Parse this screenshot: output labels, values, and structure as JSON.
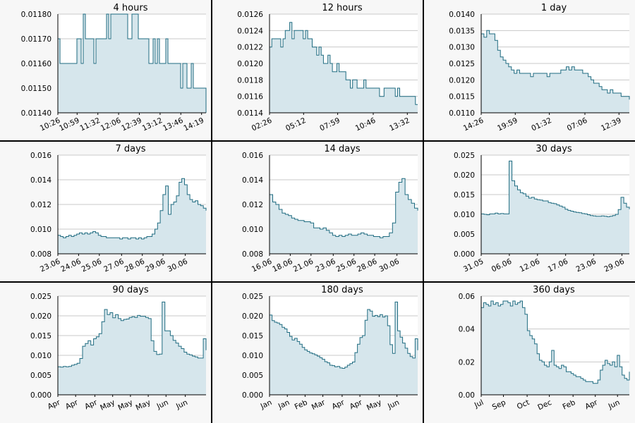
{
  "colors": {
    "line": "#1f6b80",
    "fill": "#d6e6ec",
    "grid": "#c8c8c8",
    "background": "#f7f7f7"
  },
  "chart_data": [
    {
      "type": "area",
      "title": "4 hours",
      "grid": true,
      "ylim": [
        0.0114,
        0.0118
      ],
      "yticks": [
        "0.01140",
        "0.01150",
        "0.01160",
        "0.01170",
        "0.01180"
      ],
      "xticks": [
        "10:26",
        "10:59",
        "11:32",
        "12:06",
        "12:39",
        "13:12",
        "13:46",
        "14:19"
      ],
      "xtick_pos": [
        0,
        0.13,
        0.27,
        0.41,
        0.55,
        0.69,
        0.83,
        0.97
      ],
      "series": [
        {
          "values": [
            0.0117,
            0.0116,
            0.0116,
            0.0116,
            0.0116,
            0.0116,
            0.0116,
            0.0116,
            0.0116,
            0.0117,
            0.0117,
            0.0116,
            0.0118,
            0.0117,
            0.0117,
            0.0117,
            0.0117,
            0.0116,
            0.0117,
            0.0117,
            0.0117,
            0.0117,
            0.0117,
            0.0118,
            0.0117,
            0.0118,
            0.0118,
            0.0118,
            0.0118,
            0.0118,
            0.0118,
            0.0118,
            0.0118,
            0.0117,
            0.0117,
            0.0118,
            0.0118,
            0.0118,
            0.0117,
            0.0117,
            0.0117,
            0.0117,
            0.0117,
            0.0116,
            0.0116,
            0.0117,
            0.0116,
            0.0117,
            0.0116,
            0.0116,
            0.0116,
            0.0117,
            0.0116,
            0.0116,
            0.0116,
            0.0116,
            0.0116,
            0.0116,
            0.0115,
            0.0116,
            0.0116,
            0.0115,
            0.0115,
            0.0116,
            0.0115,
            0.0115,
            0.0115,
            0.0115,
            0.0115,
            0.0115,
            0.0114
          ]
        }
      ]
    },
    {
      "type": "area",
      "title": "12 hours",
      "grid": true,
      "ylim": [
        0.0114,
        0.0126
      ],
      "yticks": [
        "0.0114",
        "0.0116",
        "0.0118",
        "0.0120",
        "0.0122",
        "0.0124",
        "0.0126"
      ],
      "xticks": [
        "02:26",
        "05:12",
        "07:59",
        "10:46",
        "13:32"
      ],
      "xtick_pos": [
        0,
        0.23,
        0.46,
        0.7,
        0.93
      ],
      "series": [
        {
          "values": [
            0.0122,
            0.0123,
            0.0123,
            0.0123,
            0.0123,
            0.0122,
            0.0123,
            0.0124,
            0.0124,
            0.0125,
            0.0123,
            0.0124,
            0.0124,
            0.0124,
            0.0124,
            0.0123,
            0.0124,
            0.0123,
            0.0123,
            0.0122,
            0.0122,
            0.0121,
            0.0122,
            0.0121,
            0.012,
            0.012,
            0.0121,
            0.012,
            0.0119,
            0.0119,
            0.012,
            0.0119,
            0.0119,
            0.0119,
            0.0118,
            0.0118,
            0.0117,
            0.0118,
            0.0118,
            0.0117,
            0.0117,
            0.0117,
            0.0118,
            0.0117,
            0.0117,
            0.0117,
            0.0117,
            0.0117,
            0.0117,
            0.0116,
            0.0116,
            0.0117,
            0.0117,
            0.0117,
            0.0117,
            0.0117,
            0.0116,
            0.0117,
            0.0116,
            0.0116,
            0.0116,
            0.0116,
            0.0116,
            0.0116,
            0.0116,
            0.0115,
            0.0115
          ]
        }
      ]
    },
    {
      "type": "area",
      "title": "1 day",
      "grid": true,
      "ylim": [
        0.011,
        0.014
      ],
      "yticks": [
        "0.0110",
        "0.0115",
        "0.0120",
        "0.0125",
        "0.0130",
        "0.0135",
        "0.0140"
      ],
      "xticks": [
        "14:26",
        "19:59",
        "01:32",
        "07:06",
        "12:39"
      ],
      "xtick_pos": [
        0,
        0.23,
        0.46,
        0.7,
        0.93
      ],
      "series": [
        {
          "values": [
            0.0134,
            0.0133,
            0.0135,
            0.0134,
            0.0134,
            0.0132,
            0.0129,
            0.0127,
            0.0126,
            0.0125,
            0.0124,
            0.0123,
            0.0122,
            0.0123,
            0.0122,
            0.0122,
            0.0122,
            0.0122,
            0.0121,
            0.0122,
            0.0122,
            0.0122,
            0.0122,
            0.0122,
            0.0121,
            0.0122,
            0.0122,
            0.0122,
            0.0122,
            0.0123,
            0.0123,
            0.0124,
            0.0123,
            0.0124,
            0.0123,
            0.0123,
            0.0123,
            0.0122,
            0.0122,
            0.0121,
            0.012,
            0.0119,
            0.0119,
            0.0118,
            0.0117,
            0.0117,
            0.0116,
            0.0117,
            0.0116,
            0.0116,
            0.0116,
            0.0115,
            0.0115,
            0.0115,
            0.0114
          ]
        }
      ]
    },
    {
      "type": "area",
      "title": "7 days",
      "grid": true,
      "ylim": [
        0.008,
        0.016
      ],
      "yticks": [
        "0.008",
        "0.010",
        "0.012",
        "0.014",
        "0.016"
      ],
      "xticks": [
        "23.06",
        "24.06",
        "25.06",
        "27.06",
        "28.06",
        "29.06",
        "30.06"
      ],
      "xtick_pos": [
        0,
        0.14,
        0.28,
        0.43,
        0.57,
        0.71,
        0.86
      ],
      "series": [
        {
          "values": [
            0.0095,
            0.0094,
            0.0093,
            0.0094,
            0.0095,
            0.0094,
            0.0095,
            0.0096,
            0.0097,
            0.0096,
            0.0097,
            0.0096,
            0.0097,
            0.0098,
            0.0097,
            0.0095,
            0.0094,
            0.0094,
            0.0093,
            0.0093,
            0.0093,
            0.0093,
            0.0093,
            0.0092,
            0.0093,
            0.0093,
            0.0092,
            0.0093,
            0.0093,
            0.0092,
            0.0093,
            0.0092,
            0.0093,
            0.0094,
            0.0094,
            0.0096,
            0.01,
            0.0105,
            0.0115,
            0.0128,
            0.0135,
            0.0112,
            0.012,
            0.0122,
            0.0127,
            0.0138,
            0.0141,
            0.0136,
            0.0128,
            0.0124,
            0.0122,
            0.0123,
            0.012,
            0.0119,
            0.0117,
            0.0115
          ]
        }
      ]
    },
    {
      "type": "area",
      "title": "14 days",
      "grid": true,
      "ylim": [
        0.008,
        0.016
      ],
      "yticks": [
        "0.008",
        "0.010",
        "0.012",
        "0.014",
        "0.016"
      ],
      "xticks": [
        "16.06",
        "18.06",
        "21.06",
        "23.06",
        "25.06",
        "28.06",
        "30.06"
      ],
      "xtick_pos": [
        0,
        0.14,
        0.28,
        0.43,
        0.57,
        0.71,
        0.86
      ],
      "series": [
        {
          "values": [
            0.0128,
            0.0122,
            0.012,
            0.0116,
            0.0113,
            0.0112,
            0.0111,
            0.0109,
            0.0108,
            0.0107,
            0.0107,
            0.0106,
            0.0106,
            0.0105,
            0.0101,
            0.0101,
            0.01,
            0.0101,
            0.0099,
            0.0097,
            0.0095,
            0.0094,
            0.0095,
            0.0094,
            0.0095,
            0.0096,
            0.0095,
            0.0095,
            0.0096,
            0.0097,
            0.0096,
            0.0095,
            0.0095,
            0.0094,
            0.0094,
            0.0093,
            0.0094,
            0.0094,
            0.0097,
            0.0105,
            0.013,
            0.0138,
            0.0141,
            0.0128,
            0.0124,
            0.0121,
            0.0117,
            0.0115
          ]
        }
      ]
    },
    {
      "type": "area",
      "title": "30 days",
      "grid": true,
      "ylim": [
        0,
        0.025
      ],
      "yticks": [
        "0.000",
        "0.005",
        "0.010",
        "0.015",
        "0.020",
        "0.025"
      ],
      "xticks": [
        "31.05",
        "06.06",
        "12.06",
        "17.06",
        "23.06",
        "29.06"
      ],
      "xtick_pos": [
        0,
        0.19,
        0.38,
        0.57,
        0.76,
        0.95
      ],
      "series": [
        {
          "values": [
            0.0101,
            0.01,
            0.0099,
            0.0101,
            0.0101,
            0.0103,
            0.0101,
            0.0102,
            0.0101,
            0.0101,
            0.0235,
            0.0185,
            0.0172,
            0.0162,
            0.0155,
            0.0152,
            0.0146,
            0.0141,
            0.0143,
            0.0139,
            0.0137,
            0.0136,
            0.0134,
            0.0134,
            0.013,
            0.0128,
            0.0127,
            0.0124,
            0.0121,
            0.0118,
            0.0113,
            0.011,
            0.0108,
            0.0106,
            0.0105,
            0.0104,
            0.0102,
            0.0101,
            0.0099,
            0.0097,
            0.0096,
            0.0095,
            0.0095,
            0.0096,
            0.0095,
            0.0094,
            0.0095,
            0.0097,
            0.01,
            0.0112,
            0.0143,
            0.0128,
            0.0118,
            0.0113
          ]
        }
      ]
    },
    {
      "type": "area",
      "title": "90 days",
      "grid": true,
      "ylim": [
        0,
        0.025
      ],
      "yticks": [
        "0.000",
        "0.005",
        "0.010",
        "0.015",
        "0.020",
        "0.025"
      ],
      "xticks": [
        "Apr",
        "Apr",
        "Apr",
        "May",
        "May",
        "May",
        "Jun",
        "Jun"
      ],
      "xtick_pos": [
        0,
        0.12,
        0.25,
        0.37,
        0.49,
        0.61,
        0.73,
        0.86
      ],
      "series": [
        {
          "values": [
            0.0071,
            0.007,
            0.0072,
            0.0071,
            0.0072,
            0.0075,
            0.0077,
            0.008,
            0.0092,
            0.0123,
            0.013,
            0.0137,
            0.0126,
            0.0142,
            0.0147,
            0.0155,
            0.0185,
            0.0216,
            0.0203,
            0.0208,
            0.0195,
            0.0203,
            0.0193,
            0.0188,
            0.0191,
            0.0192,
            0.0196,
            0.0198,
            0.0196,
            0.0201,
            0.0199,
            0.0199,
            0.0196,
            0.0193,
            0.0137,
            0.011,
            0.0102,
            0.0103,
            0.0235,
            0.0162,
            0.0162,
            0.015,
            0.0138,
            0.0131,
            0.0123,
            0.0117,
            0.0108,
            0.0103,
            0.0101,
            0.0098,
            0.0096,
            0.0093,
            0.0093,
            0.0142,
            0.0113
          ]
        }
      ]
    },
    {
      "type": "area",
      "title": "180 days",
      "grid": true,
      "ylim": [
        0,
        0.025
      ],
      "yticks": [
        "0.000",
        "0.005",
        "0.010",
        "0.015",
        "0.020",
        "0.025"
      ],
      "xticks": [
        "Jan",
        "Jan",
        "Feb",
        "Mar",
        "Apr",
        "Apr",
        "May",
        "Jun"
      ],
      "xtick_pos": [
        0,
        0.12,
        0.24,
        0.36,
        0.49,
        0.61,
        0.74,
        0.86
      ],
      "series": [
        {
          "values": [
            0.0202,
            0.0188,
            0.0184,
            0.0182,
            0.0178,
            0.0171,
            0.0167,
            0.0158,
            0.0148,
            0.0139,
            0.0143,
            0.0135,
            0.0128,
            0.012,
            0.0114,
            0.011,
            0.0106,
            0.0104,
            0.0101,
            0.0098,
            0.0094,
            0.009,
            0.0084,
            0.0081,
            0.0075,
            0.0074,
            0.0071,
            0.0072,
            0.0068,
            0.0067,
            0.007,
            0.0075,
            0.0079,
            0.0083,
            0.0107,
            0.0128,
            0.0145,
            0.015,
            0.0189,
            0.0216,
            0.0212,
            0.0199,
            0.0201,
            0.0198,
            0.0203,
            0.0197,
            0.02,
            0.0175,
            0.0127,
            0.0105,
            0.0235,
            0.0162,
            0.0146,
            0.0131,
            0.0118,
            0.0105,
            0.0097,
            0.0093,
            0.0142,
            0.0113
          ]
        }
      ]
    },
    {
      "type": "area",
      "title": "360 days",
      "grid": true,
      "ylim": [
        0,
        0.06
      ],
      "yticks": [
        "0.00",
        "0.02",
        "0.04",
        "0.06"
      ],
      "xticks": [
        "Jul",
        "Sep",
        "Oct",
        "Dec",
        "Feb",
        "Apr",
        "Jun"
      ],
      "xtick_pos": [
        0,
        0.15,
        0.31,
        0.46,
        0.62,
        0.77,
        0.92
      ],
      "series": [
        {
          "values": [
            0.053,
            0.056,
            0.055,
            0.054,
            0.057,
            0.055,
            0.056,
            0.054,
            0.055,
            0.057,
            0.057,
            0.056,
            0.054,
            0.057,
            0.055,
            0.056,
            0.057,
            0.053,
            0.049,
            0.039,
            0.036,
            0.034,
            0.031,
            0.025,
            0.021,
            0.02,
            0.018,
            0.017,
            0.02,
            0.027,
            0.018,
            0.017,
            0.016,
            0.018,
            0.017,
            0.014,
            0.014,
            0.013,
            0.012,
            0.011,
            0.011,
            0.01,
            0.009,
            0.008,
            0.008,
            0.008,
            0.007,
            0.007,
            0.009,
            0.015,
            0.018,
            0.021,
            0.019,
            0.018,
            0.02,
            0.017,
            0.024,
            0.017,
            0.012,
            0.01,
            0.009,
            0.014
          ]
        }
      ]
    }
  ]
}
